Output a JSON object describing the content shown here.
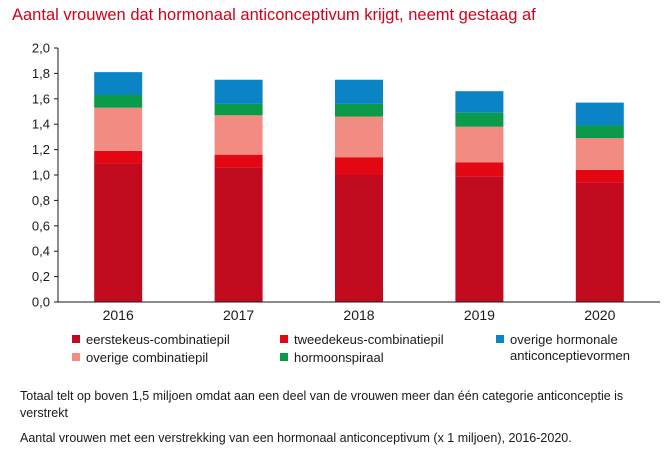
{
  "title": "Aantal vrouwen dat hormonaal anticonceptivum krijgt, neemt gestaag af",
  "note1": "Totaal telt op boven 1,5 miljoen omdat aan een deel van de vrouwen meer dan één categorie anticonceptie is verstrekt",
  "note2": "Aantal vrouwen met een verstrekking van een hormonaal anticonceptivum (x 1 miljoen), 2016-2020.",
  "chart_data": {
    "type": "bar",
    "stacked": true,
    "title": "Aantal vrouwen dat hormonaal anticonceptivum krijgt, neemt gestaag af",
    "categories": [
      "2016",
      "2017",
      "2018",
      "2019",
      "2020"
    ],
    "ylim": [
      0,
      2.0
    ],
    "yticks": [
      "0,0",
      "0,2",
      "0,4",
      "0,6",
      "0,8",
      "1,0",
      "1,2",
      "1,4",
      "1,6",
      "1,8",
      "2,0"
    ],
    "grid": false,
    "legend_position": "bottom",
    "series": [
      {
        "name": "eerstekeus-combinatiepil",
        "color": "#c10a1e",
        "values": [
          1.09,
          1.06,
          1.0,
          0.99,
          0.94
        ]
      },
      {
        "name": "tweedekeus-combinatiepil",
        "color": "#e30613",
        "values": [
          0.1,
          0.1,
          0.14,
          0.11,
          0.1
        ]
      },
      {
        "name": "overige combinatiepil",
        "color": "#f28b82",
        "values": [
          0.34,
          0.31,
          0.32,
          0.28,
          0.25
        ]
      },
      {
        "name": "hormoonspiraal",
        "color": "#0a9a4a",
        "values": [
          0.1,
          0.09,
          0.1,
          0.11,
          0.1
        ]
      },
      {
        "name": "overige hormonale\nanticonceptievormen",
        "color": "#0a84c4",
        "values": [
          0.18,
          0.19,
          0.19,
          0.17,
          0.18
        ]
      }
    ]
  }
}
